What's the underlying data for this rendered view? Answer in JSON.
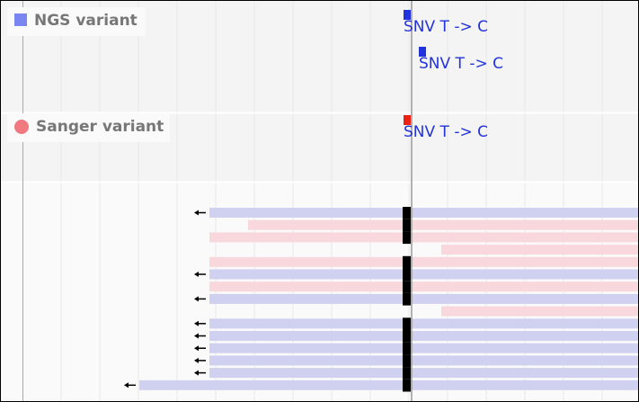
{
  "tracks": [
    {
      "label": "NGS variant",
      "variants": [
        {
          "label": "SNV T -> C"
        },
        {
          "label": "SNV T -> C"
        }
      ]
    },
    {
      "label": "Sanger variant",
      "variants": [
        {
          "label": "SNV T -> C"
        }
      ]
    }
  ]
}
